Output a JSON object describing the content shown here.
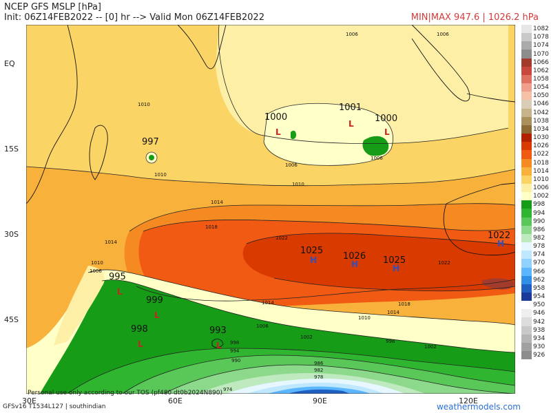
{
  "header": {
    "title": "NCEP GFS MSLP [hPa]",
    "init": "Init: 06Z14FEB2022 -- [0] hr --> Valid Mon 06Z14FEB2022",
    "minmax": "MIN|MAX 947.6 | 1026.2 hPa"
  },
  "axes": {
    "lat_labels": [
      "EQ",
      "15S",
      "30S",
      "45S"
    ],
    "lon_labels": [
      "30E",
      "60E",
      "90E",
      "120E"
    ]
  },
  "pressure_centers": [
    {
      "label": "997",
      "letter": "L",
      "color": "#cc2222"
    },
    {
      "label": "1000",
      "letter": "L",
      "color": "#cc2222"
    },
    {
      "label": "1001",
      "letter": "L",
      "color": "#cc2222"
    },
    {
      "label": "1000",
      "letter": "L",
      "color": "#cc2222"
    },
    {
      "label": "1025",
      "letter": "H",
      "color": "#3050c0"
    },
    {
      "label": "1026",
      "letter": "H",
      "color": "#3050c0"
    },
    {
      "label": "1025",
      "letter": "H",
      "color": "#3050c0"
    },
    {
      "label": "1022",
      "letter": "H",
      "color": "#3050c0"
    },
    {
      "label": "995",
      "letter": "L",
      "color": "#cc2222"
    },
    {
      "label": "999",
      "letter": "L",
      "color": "#cc2222"
    },
    {
      "label": "998",
      "letter": "L",
      "color": "#cc2222"
    },
    {
      "label": "993",
      "letter": "L",
      "color": "#cc2222"
    }
  ],
  "isobar_labels": [
    "1006",
    "1006",
    "1010",
    "1010",
    "1006",
    "1006",
    "1010",
    "1014",
    "1018",
    "1022",
    "1014",
    "1010",
    "1006",
    "1002",
    "998",
    "994",
    "990",
    "986",
    "982",
    "978",
    "974",
    "1014",
    "1018",
    "1022",
    "1014",
    "1010",
    "1006",
    "1002",
    "998"
  ],
  "legend": {
    "levels": [
      "1082",
      "1078",
      "1074",
      "1070",
      "1066",
      "1062",
      "1058",
      "1054",
      "1050",
      "1046",
      "1042",
      "1038",
      "1034",
      "1030",
      "1026",
      "1022",
      "1018",
      "1014",
      "1010",
      "1006",
      "1002",
      "998",
      "994",
      "990",
      "986",
      "982",
      "978",
      "974",
      "970",
      "966",
      "962",
      "958",
      "954",
      "950",
      "946",
      "942",
      "938",
      "934",
      "930",
      "926"
    ],
    "colors": [
      "#e6e6e6",
      "#c8c8c8",
      "#aaaaaa",
      "#8c8c8c",
      "#a33b2c",
      "#c9483c",
      "#e0705f",
      "#eea08c",
      "#f4c0a8",
      "#d9cdb8",
      "#c7b38b",
      "#a98f5a",
      "#8c6a34",
      "#b32200",
      "#d83a00",
      "#f05a12",
      "#f58a22",
      "#f8b23c",
      "#fbd466",
      "#fdf0a6",
      "#ffffc8",
      "#179c17",
      "#2fb52f",
      "#59c859",
      "#8cd98c",
      "#bfeabf",
      "#e6f7ff",
      "#bfe8ff",
      "#8fd2ff",
      "#5cb6ff",
      "#2f8fe6",
      "#1f5fc0",
      "#1a3a99",
      "#ffffff",
      "#efefef",
      "#dcdcdc",
      "#c9c9c9",
      "#b5b5b5",
      "#a1a1a1",
      "#8d8d8d"
    ]
  },
  "footer": {
    "left_text": "Personal use only according to our TOS (pf480 dt0b2024N890)",
    "model_text": "GFSv16 T1534L127 | southindian",
    "brand": "weathermodels.com"
  }
}
